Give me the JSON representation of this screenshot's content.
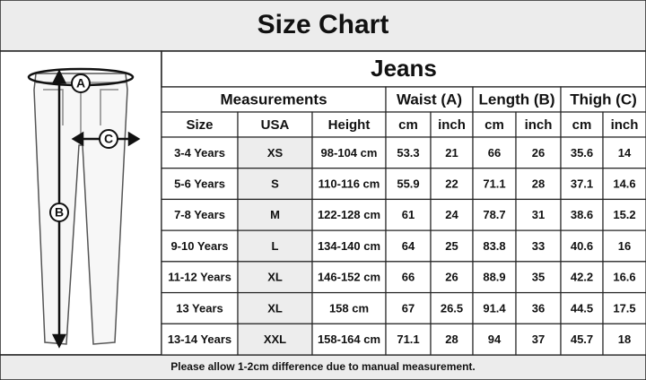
{
  "header": {
    "title": "Size Chart"
  },
  "table": {
    "title": "Jeans",
    "group_headers": [
      "Measurements",
      "Waist (A)",
      "Length (B)",
      "Thigh (C)"
    ],
    "columns": [
      "Size",
      "USA",
      "Height",
      "cm",
      "inch",
      "cm",
      "inch",
      "cm",
      "inch"
    ],
    "rows": [
      [
        "3-4 Years",
        "XS",
        "98-104 cm",
        53.3,
        21,
        66,
        26,
        35.6,
        14
      ],
      [
        "5-6 Years",
        "S",
        "110-116 cm",
        55.9,
        22,
        71.1,
        28,
        37.1,
        14.6
      ],
      [
        "7-8 Years",
        "M",
        "122-128 cm",
        61,
        24,
        78.7,
        31,
        38.6,
        15.2
      ],
      [
        "9-10 Years",
        "L",
        "134-140 cm",
        64,
        25,
        83.8,
        33,
        40.6,
        16
      ],
      [
        "11-12 Years",
        "XL",
        "146-152 cm",
        66,
        26,
        88.9,
        35,
        42.2,
        16.6
      ],
      [
        "13 Years",
        "XL",
        "158 cm",
        67,
        26.5,
        91.4,
        36,
        44.5,
        17.5
      ],
      [
        "13-14 Years",
        "XXL",
        "158-164 cm",
        71.1,
        28,
        94,
        37,
        45.7,
        18
      ]
    ]
  },
  "illustration": {
    "labels": [
      "A",
      "B",
      "C"
    ]
  },
  "footer": {
    "note": "Please allow 1-2cm difference due to manual measurement."
  }
}
